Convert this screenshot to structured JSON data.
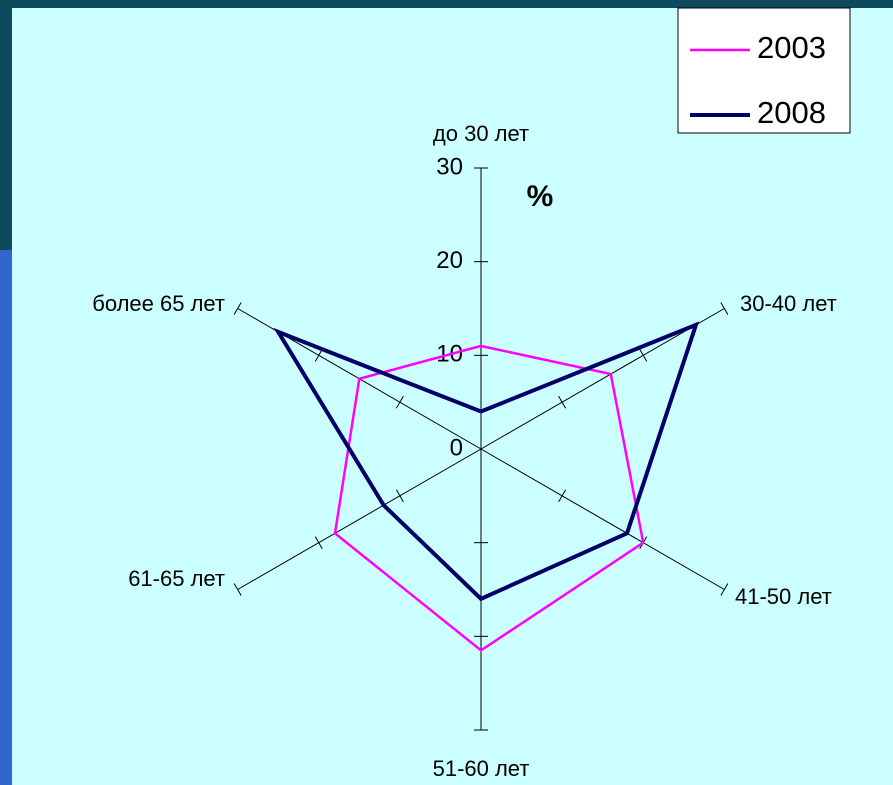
{
  "chart_data": {
    "type": "radar",
    "y_label": "%",
    "categories": [
      "до 30 лет",
      "30-40 лет",
      "41-50 лет",
      "51-60 лет",
      "61-65 лет",
      "более 65 лет"
    ],
    "series": [
      {
        "name": "2003",
        "color": "#ff00ff",
        "values": [
          11,
          16,
          20,
          21.5,
          18,
          15
        ]
      },
      {
        "name": "2008",
        "color": "#000066",
        "values": [
          4,
          26.5,
          18,
          16,
          12,
          25
        ]
      }
    ],
    "ylim": [
      0,
      30
    ],
    "yticks": [
      0,
      10,
      20,
      30
    ],
    "legend": "top-right"
  }
}
